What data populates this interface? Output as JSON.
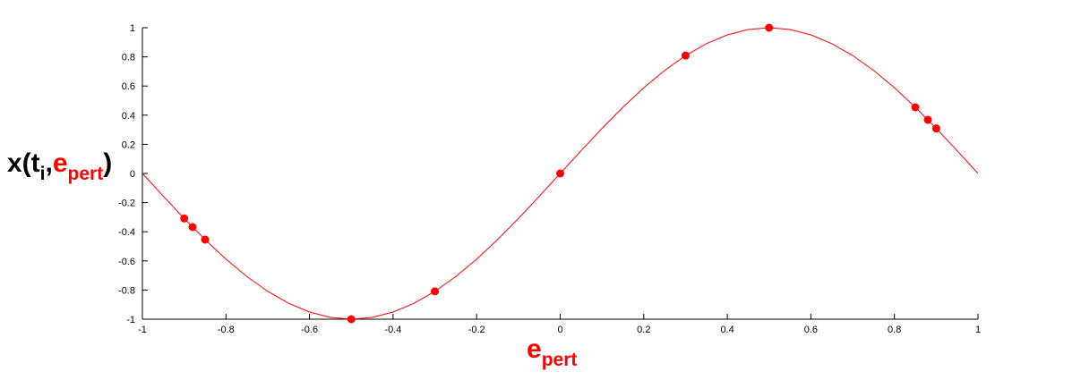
{
  "chart_data": {
    "type": "line",
    "title": "",
    "xlabel": {
      "base": "e",
      "sub": "pert"
    },
    "ylabel": {
      "prefix": "x(t",
      "sub_i": "i",
      "comma": ",",
      "e": "e",
      "sub_pert": "pert",
      "close": ")"
    },
    "xlim": [
      -1,
      1
    ],
    "ylim": [
      -1,
      1
    ],
    "xticks": [
      -1,
      -0.8,
      -0.6,
      -0.4,
      -0.2,
      0,
      0.2,
      0.4,
      0.6,
      0.8,
      1
    ],
    "xtick_labels": [
      "-1",
      "-0.8",
      "-0.6",
      "-0.4",
      "-0.2",
      "0",
      "0.2",
      "0.4",
      "0.6",
      "0.8",
      "1"
    ],
    "yticks": [
      -1,
      -0.8,
      -0.6,
      -0.4,
      -0.2,
      0,
      0.2,
      0.4,
      0.6,
      0.8,
      1
    ],
    "ytick_labels": [
      "-1",
      "-0.8",
      "-0.6",
      "-0.4",
      "-0.2",
      "0",
      "0.2",
      "0.4",
      "0.6",
      "0.8",
      "1"
    ],
    "grid": false,
    "series": [
      {
        "kind": "curve",
        "function": "sin(pi*x)",
        "color": "#ff0000",
        "x": [
          -1,
          -0.95,
          -0.9,
          -0.85,
          -0.8,
          -0.75,
          -0.7,
          -0.65,
          -0.6,
          -0.55,
          -0.5,
          -0.45,
          -0.4,
          -0.35,
          -0.3,
          -0.25,
          -0.2,
          -0.15,
          -0.1,
          -0.05,
          0,
          0.05,
          0.1,
          0.15,
          0.2,
          0.25,
          0.3,
          0.35,
          0.4,
          0.45,
          0.5,
          0.55,
          0.6,
          0.65,
          0.7,
          0.75,
          0.8,
          0.85,
          0.9,
          0.95,
          1
        ],
        "y": [
          0,
          -0.156,
          -0.309,
          -0.454,
          -0.588,
          -0.707,
          -0.809,
          -0.891,
          -0.951,
          -0.988,
          -1,
          -0.988,
          -0.951,
          -0.891,
          -0.809,
          -0.707,
          -0.588,
          -0.454,
          -0.309,
          -0.156,
          0,
          0.156,
          0.309,
          0.454,
          0.588,
          0.707,
          0.809,
          0.891,
          0.951,
          0.988,
          1,
          0.988,
          0.951,
          0.891,
          0.809,
          0.707,
          0.588,
          0.454,
          0.309,
          0.156,
          0
        ]
      },
      {
        "kind": "points",
        "color": "#ff0000",
        "x": [
          -0.9,
          -0.88,
          -0.85,
          -0.5,
          -0.3,
          0,
          0.3,
          0.5,
          0.85,
          0.88,
          0.9
        ],
        "y": [
          -0.309,
          -0.368,
          -0.454,
          -1,
          -0.809,
          0,
          0.809,
          1,
          0.454,
          0.368,
          0.309
        ]
      }
    ]
  }
}
